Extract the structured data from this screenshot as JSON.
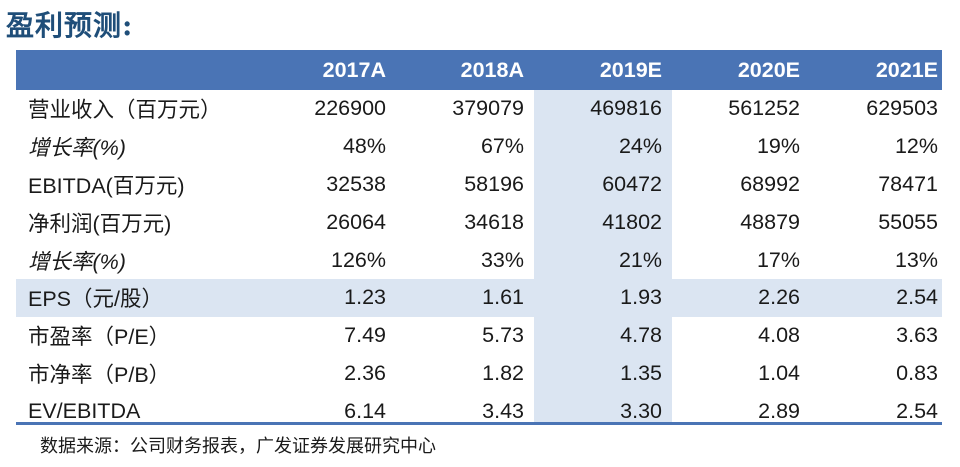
{
  "title": "盈利预测:",
  "columns": [
    "2017A",
    "2018A",
    "2019E",
    "2020E",
    "2021E"
  ],
  "rows": [
    {
      "label": "营业收入（百万元）",
      "italic": false,
      "shaded": false,
      "values": [
        "226900",
        "379079",
        "469816",
        "561252",
        "629503"
      ]
    },
    {
      "label": "增长率(%)",
      "italic": true,
      "shaded": false,
      "values": [
        "48%",
        "67%",
        "24%",
        "19%",
        "12%"
      ]
    },
    {
      "label": "EBITDA(百万元)",
      "italic": false,
      "shaded": false,
      "values": [
        "32538",
        "58196",
        "60472",
        "68992",
        "78471"
      ]
    },
    {
      "label": "净利润(百万元)",
      "italic": false,
      "shaded": false,
      "values": [
        "26064",
        "34618",
        "41802",
        "48879",
        "55055"
      ]
    },
    {
      "label": "增长率(%)",
      "italic": true,
      "shaded": false,
      "values": [
        "126%",
        "33%",
        "21%",
        "17%",
        "13%"
      ]
    },
    {
      "label": "EPS（元/股）",
      "italic": false,
      "shaded": true,
      "values": [
        "1.23",
        "1.61",
        "1.93",
        "2.26",
        "2.54"
      ]
    },
    {
      "label": "市盈率（P/E）",
      "italic": false,
      "shaded": false,
      "values": [
        "7.49",
        "5.73",
        "4.78",
        "4.08",
        "3.63"
      ]
    },
    {
      "label": "市净率（P/B）",
      "italic": false,
      "shaded": false,
      "values": [
        "2.36",
        "1.82",
        "1.35",
        "1.04",
        "0.83"
      ]
    },
    {
      "label": "EV/EBITDA",
      "italic": false,
      "shaded": false,
      "values": [
        "6.14",
        "3.43",
        "3.30",
        "2.89",
        "2.54"
      ]
    }
  ],
  "source": "数据来源：公司财务报表，广发证券发展研究中心",
  "colors": {
    "header": "#4a74b5",
    "shade": "#dbe5f2",
    "title": "#1f4e79"
  }
}
